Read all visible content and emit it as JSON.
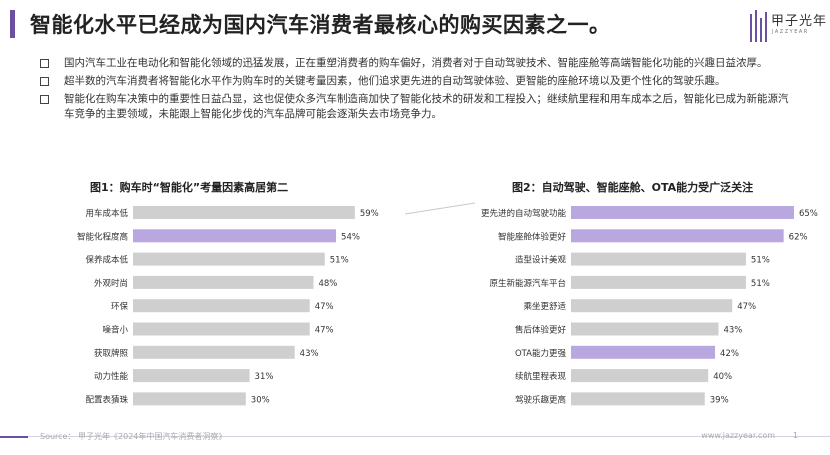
{
  "page": {
    "title": "智能化水平已经成为国内汽车消费者最核心的购买因素之一。",
    "accent_color": "#6b4fa0",
    "logo": {
      "name": "甲子光年",
      "sub": "JAZZYEAR"
    },
    "bullets": [
      "国内汽车工业在电动化和智能化领域的迅猛发展，正在重塑消费者的购车偏好，消费者对于自动驾驶技术、智能座舱等高端智能化功能的兴趣日益浓厚。",
      "超半数的汽车消费者将智能化水平作为购车时的关键考量因素，他们追求更先进的自动驾驶体验、更智能的座舱环境以及更个性化的驾驶乐趣。",
      "智能化在购车决策中的重要性日益凸显，这也促使众多汽车制造商加快了智能化技术的研发和工程投入；继续航里程和用车成本之后，智能化已成为新能源汽车竞争的主要领域，未能跟上智能化步伐的汽车品牌可能会逐渐失去市场竞争力。"
    ],
    "footer": {
      "source": "Source：  甲子光年《2024年中国汽车消费者洞察》",
      "site": "www.jazzyear.com",
      "page_number": "1"
    }
  },
  "chart_data": [
    {
      "type": "bar",
      "orientation": "horizontal",
      "title": "图1：购车时“智能化”考量因素高居第二",
      "categories": [
        "用车成本低",
        "智能化程度高",
        "保养成本低",
        "外观时尚",
        "环保",
        "噪音小",
        "获取牌照",
        "动力性能",
        "配置表猜珠"
      ],
      "values": [
        59,
        54,
        51,
        48,
        47,
        47,
        43,
        31,
        30
      ],
      "labels": [
        "59%",
        "54%",
        "51%",
        "48%",
        "47%",
        "47%",
        "43%",
        "31%",
        "30%"
      ],
      "highlight": [
        1
      ],
      "xlim": [
        0,
        100
      ]
    },
    {
      "type": "bar",
      "orientation": "horizontal",
      "title": "图2：自动驾驶、智能座舱、OTA能力受广泛关注",
      "categories": [
        "更先进的自动驾驶功能",
        "智能座舱体验更好",
        "造型设计美观",
        "原生新能源汽车平台",
        "乘坐更舒适",
        "售后体验更好",
        "OTA能力更强",
        "续航里程表现",
        "驾驶乐趣更高"
      ],
      "values": [
        65,
        62,
        51,
        51,
        47,
        43,
        42,
        40,
        39
      ],
      "labels": [
        "65%",
        "62%",
        "51%",
        "51%",
        "47%",
        "43%",
        "42%",
        "40%",
        "39%"
      ],
      "highlight": [
        0,
        1,
        6
      ],
      "xlim": [
        0,
        100
      ]
    }
  ],
  "colors": {
    "bar_gray": "#cfcfcf",
    "bar_highlight": "#b9a7e0"
  }
}
